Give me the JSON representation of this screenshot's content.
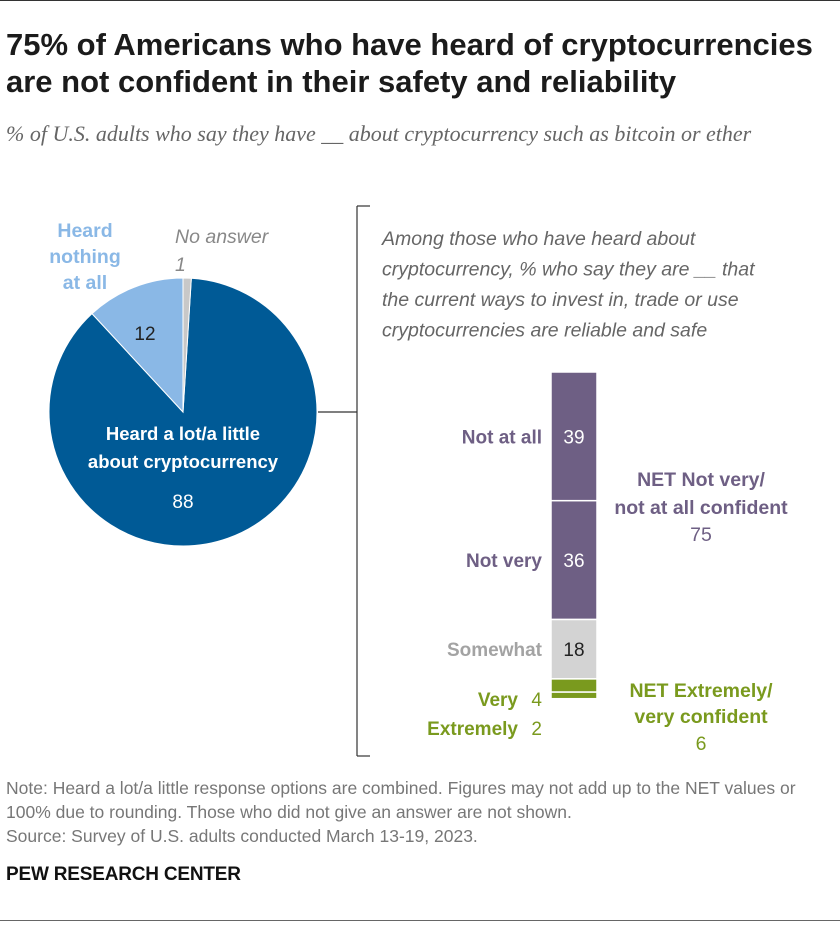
{
  "title": "75% of Americans who have heard of cryptocurrencies are not confident in their safety and reliability",
  "subtitle": "% of U.S. adults who say they have __ about cryptocurrency such as bitcoin or ether",
  "chart_data": [
    {
      "type": "pie",
      "title": "% of U.S. adults who say they have __ about cryptocurrency such as bitcoin or ether",
      "slices": [
        {
          "label_lines": [
            "Heard a lot/a little",
            "about cryptocurrency"
          ],
          "value": 88,
          "value_label": "88",
          "color": "#005a96",
          "label_color": "#ffffff"
        },
        {
          "label_lines": [
            "Heard",
            "nothing",
            "at all"
          ],
          "value": 12,
          "value_label": "12",
          "color": "#8ab8e6",
          "label_color": "#8ab8e6"
        },
        {
          "label_lines": [
            "No answer"
          ],
          "value": 1,
          "value_label": "1",
          "color": "#c8c8c8",
          "label_color": "#888888"
        }
      ]
    },
    {
      "type": "bar",
      "stacked": true,
      "orientation": "vertical",
      "title_lines": [
        "Among those who have heard about",
        "cryptocurrency, % who say they are __ that",
        "the current ways to invest in, trade or use",
        "cryptocurrencies are reliable and safe"
      ],
      "segments": [
        {
          "label": "Not at all",
          "value": 39,
          "value_label": "39",
          "color": "#6e5f84",
          "label_color": "#6e5f84"
        },
        {
          "label": "Not very",
          "value": 36,
          "value_label": "36",
          "color": "#6e5f84",
          "label_color": "#6e5f84"
        },
        {
          "label": "Somewhat",
          "value": 18,
          "value_label": "18",
          "color": "#d3d3d3",
          "label_color": "#a3a3a3"
        },
        {
          "label": "Very",
          "value": 4,
          "value_label": "4",
          "color": "#7a9a1e",
          "label_color": "#7a9a1e"
        },
        {
          "label": "Extremely",
          "value": 2,
          "value_label": "2",
          "color": "#7a9a1e",
          "label_color": "#7a9a1e"
        }
      ],
      "nets": [
        {
          "label_lines": [
            "NET Not very/",
            "not at all confident"
          ],
          "value": 75,
          "value_label": "75",
          "color": "#6e5f84"
        },
        {
          "label_lines": [
            "NET Extremely/",
            "very confident"
          ],
          "value": 6,
          "value_label": "6",
          "color": "#7a9a1e"
        }
      ]
    }
  ],
  "note": "Note: Heard a lot/a little response options are combined. Figures may not add up to the NET values or 100% due to rounding. Those who did not give an answer are not shown.",
  "source": "Source: Survey of U.S. adults conducted March 13-19, 2023.",
  "organization": "PEW RESEARCH CENTER"
}
